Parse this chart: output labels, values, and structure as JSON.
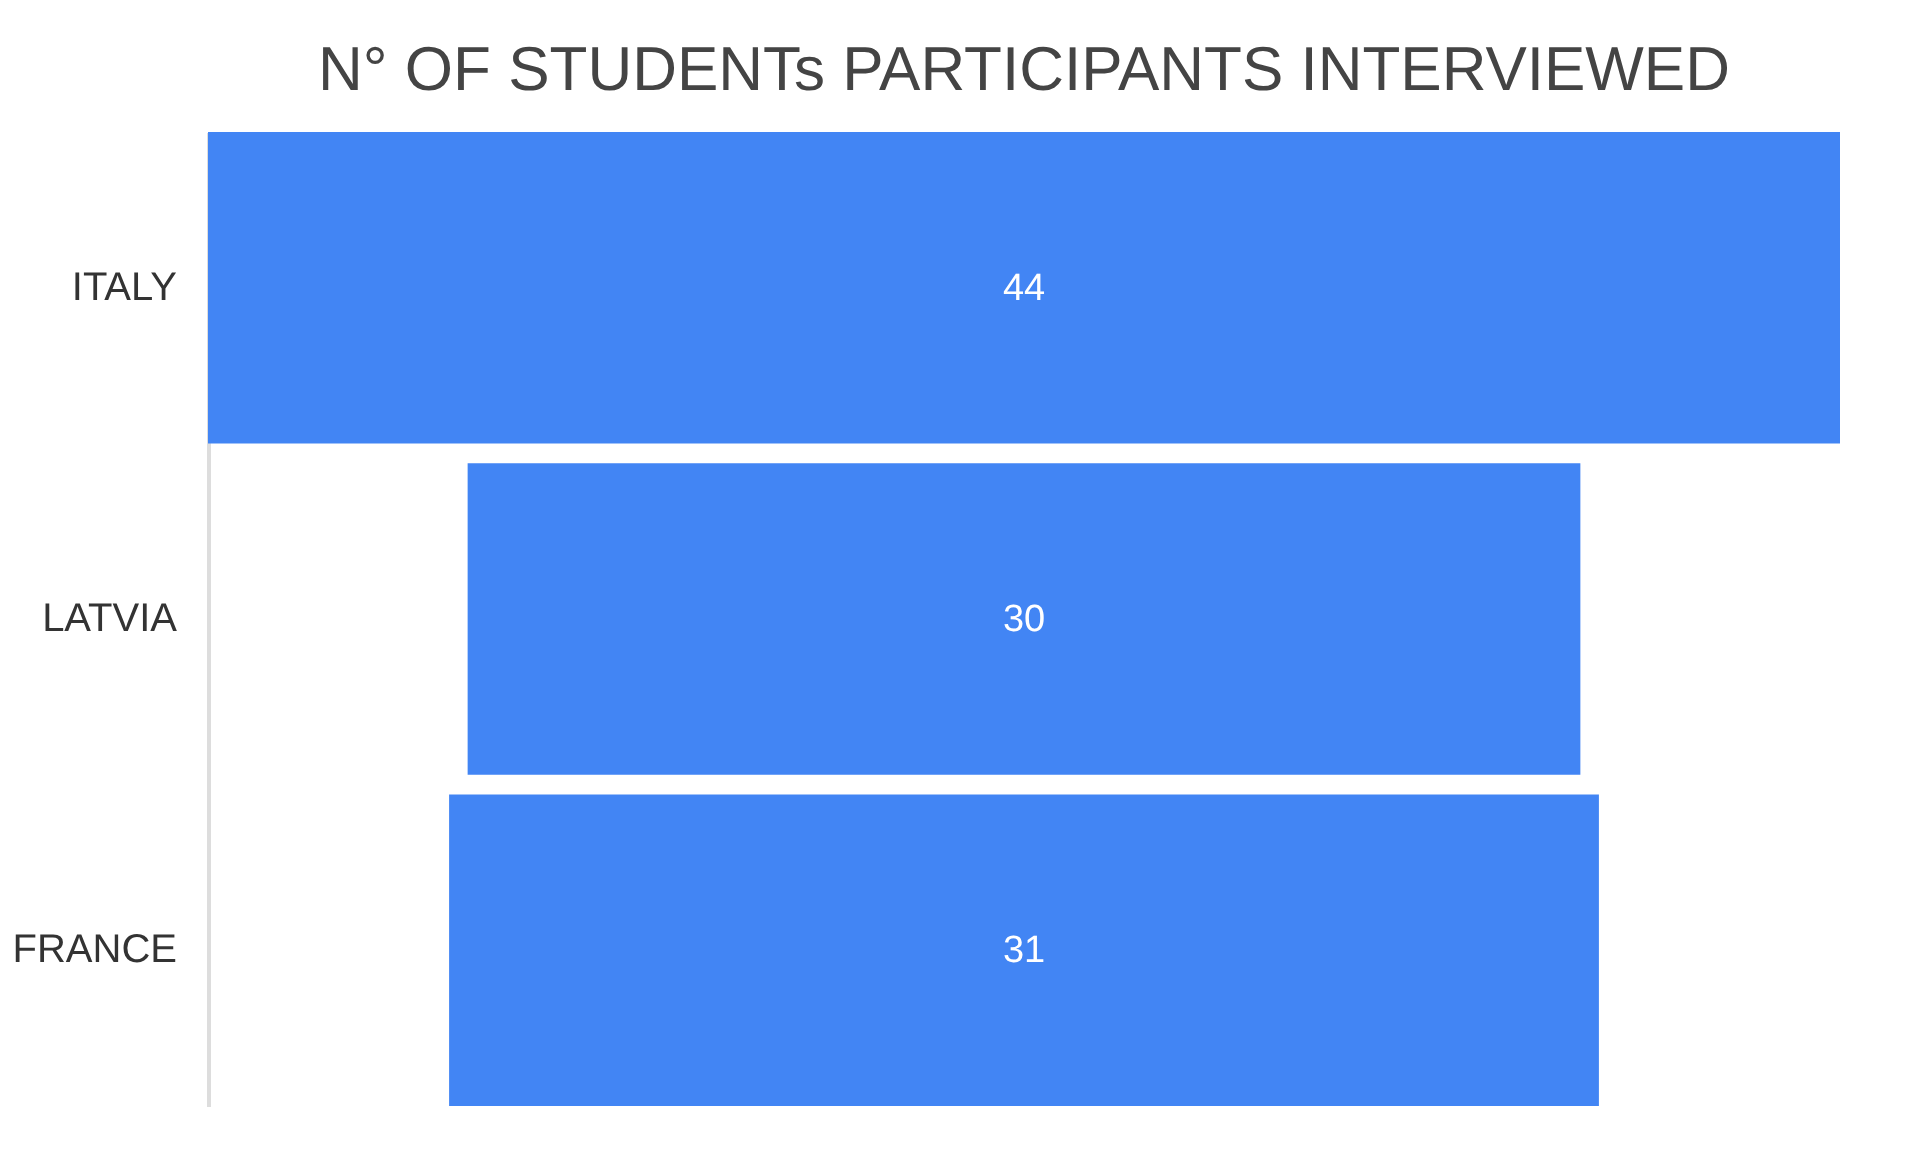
{
  "chart_data": {
    "type": "other",
    "title": "N° OF STUDENTs PARTICIPANTS INTERVIEWED",
    "categories": [
      "ITALY",
      "LATVIA",
      "FRANCE"
    ],
    "values": [
      44,
      30,
      31
    ],
    "color": "#4285f4",
    "data_labels": true
  }
}
